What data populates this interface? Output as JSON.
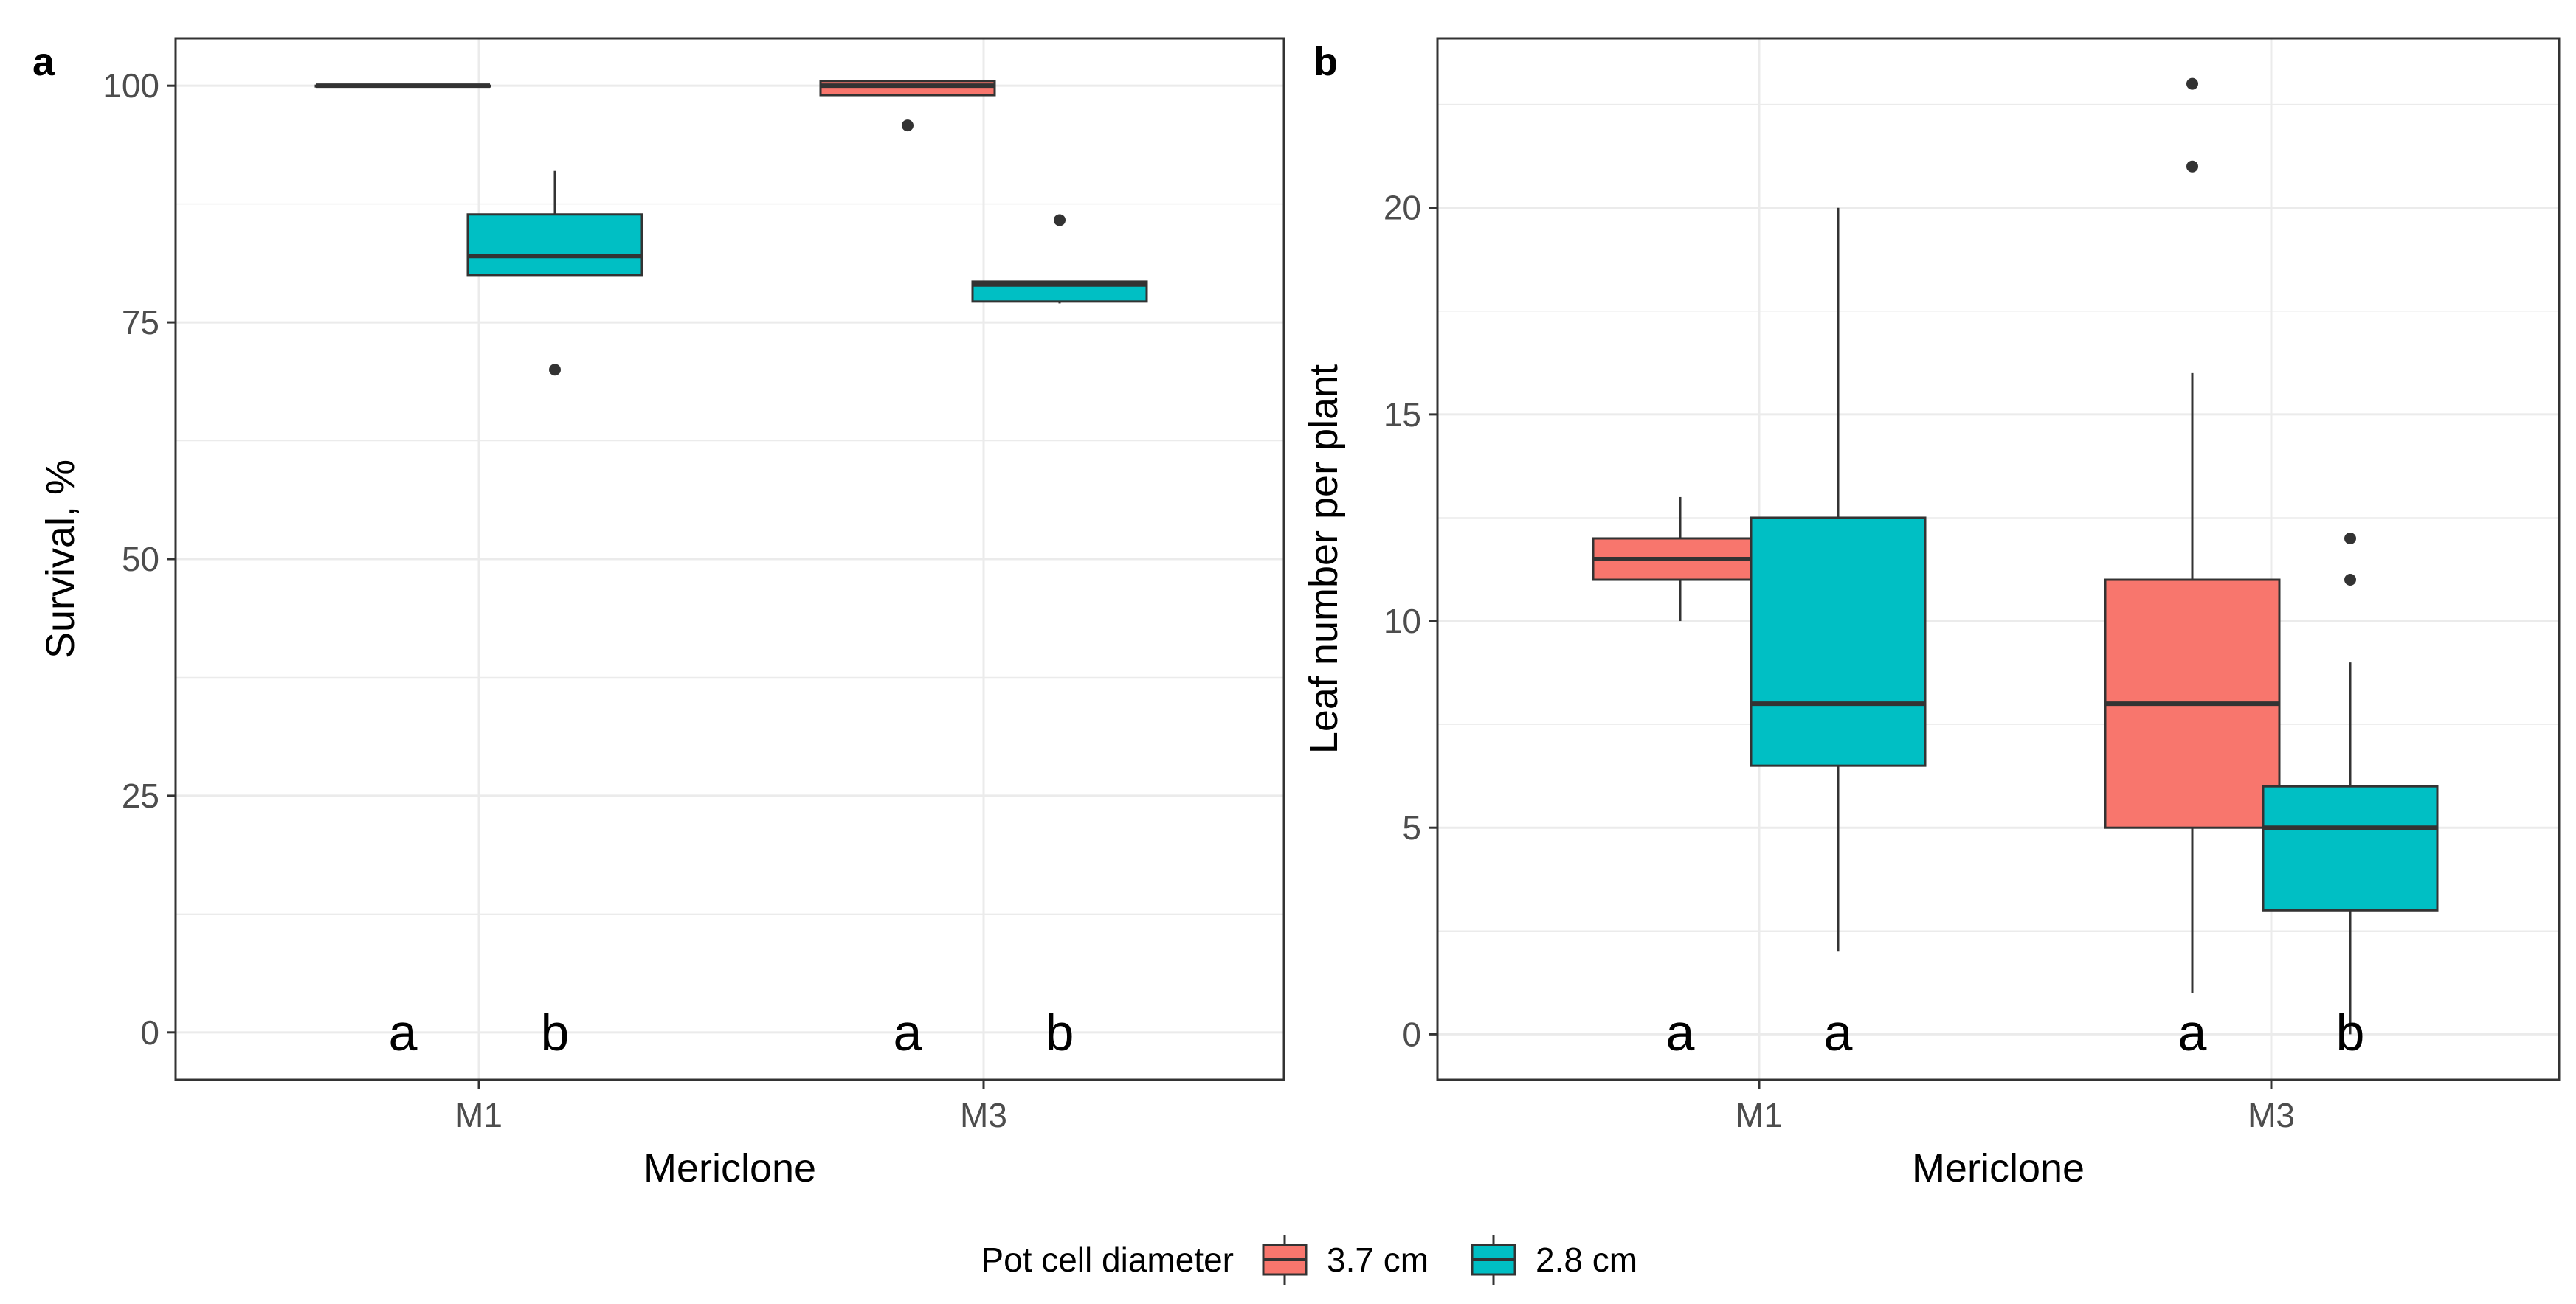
{
  "chart_data": [
    {
      "type": "box",
      "panel_label": "a",
      "xlabel": "Mericlone",
      "ylabel": "Survival, %",
      "categories": [
        "M1",
        "M3"
      ],
      "ylim": [
        -5,
        105
      ],
      "yticks": [
        0,
        25,
        50,
        75,
        100
      ],
      "grid": true,
      "series": [
        {
          "name": "3.7 cm",
          "color": "#F8766D",
          "boxes": [
            {
              "category": "M1",
              "min": 100,
              "q1": 100,
              "median": 100,
              "q3": 100,
              "max": 100,
              "outliers": []
            },
            {
              "category": "M3",
              "min": 99,
              "q1": 99,
              "median": 100,
              "q3": 100.5,
              "max": 100.5,
              "outliers": [
                95.8
              ]
            }
          ]
        },
        {
          "name": "2.8 cm",
          "color": "#00BFC4",
          "boxes": [
            {
              "category": "M1",
              "min": 80,
              "q1": 80,
              "median": 82,
              "q3": 86.4,
              "max": 91,
              "outliers": [
                70
              ]
            },
            {
              "category": "M3",
              "min": 77,
              "q1": 77.2,
              "median": 79,
              "q3": 79.3,
              "max": 79.3,
              "outliers": [
                85.8
              ]
            }
          ]
        }
      ],
      "significance_letters": [
        {
          "category": "M1",
          "series": "3.7 cm",
          "text": "a"
        },
        {
          "category": "M1",
          "series": "2.8 cm",
          "text": "b"
        },
        {
          "category": "M3",
          "series": "3.7 cm",
          "text": "a"
        },
        {
          "category": "M3",
          "series": "2.8 cm",
          "text": "b"
        }
      ]
    },
    {
      "type": "box",
      "panel_label": "b",
      "xlabel": "Mericlone",
      "ylabel": "Leaf number per plant",
      "categories": [
        "M1",
        "M3"
      ],
      "ylim": [
        -1.1,
        24.1
      ],
      "yticks": [
        0,
        5,
        10,
        15,
        20
      ],
      "grid": true,
      "series": [
        {
          "name": "3.7 cm",
          "color": "#F8766D",
          "boxes": [
            {
              "category": "M1",
              "min": 10,
              "q1": 11,
              "median": 11.5,
              "q3": 12,
              "max": 13,
              "outliers": []
            },
            {
              "category": "M3",
              "min": 1,
              "q1": 5,
              "median": 8,
              "q3": 11,
              "max": 16,
              "outliers": [
                21,
                23
              ]
            }
          ]
        },
        {
          "name": "2.8 cm",
          "color": "#00BFC4",
          "boxes": [
            {
              "category": "M1",
              "min": 2,
              "q1": 6.5,
              "median": 8,
              "q3": 12.5,
              "max": 20,
              "outliers": []
            },
            {
              "category": "M3",
              "min": 0,
              "q1": 3,
              "median": 5,
              "q3": 6,
              "max": 9,
              "outliers": [
                11,
                12
              ]
            }
          ]
        }
      ],
      "significance_letters": [
        {
          "category": "M1",
          "series": "3.7 cm",
          "text": "a"
        },
        {
          "category": "M1",
          "series": "2.8 cm",
          "text": "a"
        },
        {
          "category": "M3",
          "series": "3.7 cm",
          "text": "a"
        },
        {
          "category": "M3",
          "series": "2.8 cm",
          "text": "b"
        }
      ]
    }
  ],
  "legend": {
    "title": "Pot cell diameter",
    "position": "bottom",
    "items": [
      {
        "label": "3.7 cm",
        "color": "#F8766D"
      },
      {
        "label": "2.8 cm",
        "color": "#00BFC4"
      }
    ]
  }
}
